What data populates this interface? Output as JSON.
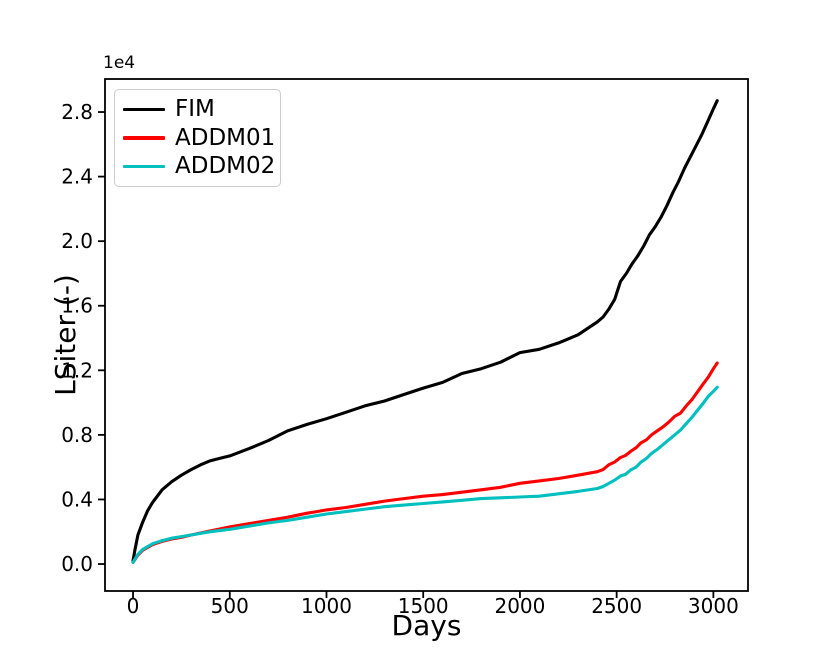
{
  "figure": {
    "background": "#ffffff",
    "text_color": "#000000"
  },
  "chart_data": {
    "type": "line",
    "title": "",
    "xlabel": "Days",
    "ylabel": "LSiter (-)",
    "y_offset_label": "1e4",
    "grid": false,
    "legend_position": "upper-left",
    "axis_color": "#000000",
    "x_range": [
      -145,
      3179
    ],
    "y_range": [
      -1671,
      30046
    ],
    "x_ticks": [
      0,
      500,
      1000,
      1500,
      2000,
      2500,
      3000
    ],
    "x_tick_labels": [
      "0",
      "500",
      "1000",
      "1500",
      "2000",
      "2500",
      "3000"
    ],
    "y_ticks": [
      0,
      4000,
      8000,
      12000,
      16000,
      20000,
      24000,
      28000
    ],
    "y_tick_labels": [
      "0.0",
      "0.4",
      "0.8",
      "1.2",
      "1.6",
      "2.0",
      "2.4",
      "2.8"
    ],
    "series": [
      {
        "name": "FIM",
        "color": "#000000",
        "points": [
          [
            0,
            200
          ],
          [
            10,
            900
          ],
          [
            25,
            1800
          ],
          [
            50,
            2600
          ],
          [
            75,
            3300
          ],
          [
            100,
            3800
          ],
          [
            150,
            4600
          ],
          [
            200,
            5100
          ],
          [
            250,
            5500
          ],
          [
            300,
            5850
          ],
          [
            350,
            6150
          ],
          [
            400,
            6400
          ],
          [
            450,
            6550
          ],
          [
            500,
            6700
          ],
          [
            600,
            7150
          ],
          [
            700,
            7650
          ],
          [
            800,
            8250
          ],
          [
            900,
            8650
          ],
          [
            1000,
            9000
          ],
          [
            1100,
            9400
          ],
          [
            1200,
            9800
          ],
          [
            1300,
            10100
          ],
          [
            1400,
            10500
          ],
          [
            1500,
            10900
          ],
          [
            1600,
            11250
          ],
          [
            1700,
            11800
          ],
          [
            1800,
            12100
          ],
          [
            1900,
            12500
          ],
          [
            2000,
            13100
          ],
          [
            2100,
            13300
          ],
          [
            2200,
            13700
          ],
          [
            2300,
            14200
          ],
          [
            2400,
            15000
          ],
          [
            2430,
            15300
          ],
          [
            2460,
            15800
          ],
          [
            2490,
            16400
          ],
          [
            2520,
            17500
          ],
          [
            2550,
            18000
          ],
          [
            2580,
            18600
          ],
          [
            2610,
            19100
          ],
          [
            2640,
            19700
          ],
          [
            2670,
            20400
          ],
          [
            2700,
            20900
          ],
          [
            2730,
            21500
          ],
          [
            2760,
            22200
          ],
          [
            2790,
            23000
          ],
          [
            2820,
            23700
          ],
          [
            2850,
            24500
          ],
          [
            2880,
            25200
          ],
          [
            2910,
            25900
          ],
          [
            2940,
            26600
          ],
          [
            2970,
            27400
          ],
          [
            3000,
            28200
          ],
          [
            3020,
            28700
          ]
        ]
      },
      {
        "name": "ADDM01",
        "color": "#ff0000",
        "points": [
          [
            0,
            100
          ],
          [
            25,
            550
          ],
          [
            50,
            850
          ],
          [
            100,
            1200
          ],
          [
            150,
            1400
          ],
          [
            200,
            1550
          ],
          [
            250,
            1650
          ],
          [
            300,
            1800
          ],
          [
            400,
            2050
          ],
          [
            500,
            2300
          ],
          [
            600,
            2500
          ],
          [
            700,
            2700
          ],
          [
            800,
            2900
          ],
          [
            900,
            3150
          ],
          [
            950,
            3250
          ],
          [
            1000,
            3350
          ],
          [
            1100,
            3500
          ],
          [
            1200,
            3700
          ],
          [
            1300,
            3900
          ],
          [
            1400,
            4050
          ],
          [
            1500,
            4200
          ],
          [
            1600,
            4300
          ],
          [
            1700,
            4450
          ],
          [
            1800,
            4600
          ],
          [
            1900,
            4750
          ],
          [
            2000,
            5000
          ],
          [
            2100,
            5150
          ],
          [
            2200,
            5300
          ],
          [
            2300,
            5500
          ],
          [
            2400,
            5720
          ],
          [
            2430,
            5850
          ],
          [
            2460,
            6150
          ],
          [
            2490,
            6320
          ],
          [
            2520,
            6600
          ],
          [
            2545,
            6720
          ],
          [
            2575,
            7000
          ],
          [
            2600,
            7200
          ],
          [
            2625,
            7500
          ],
          [
            2655,
            7700
          ],
          [
            2680,
            8000
          ],
          [
            2710,
            8250
          ],
          [
            2740,
            8500
          ],
          [
            2770,
            8800
          ],
          [
            2800,
            9150
          ],
          [
            2830,
            9350
          ],
          [
            2860,
            9800
          ],
          [
            2890,
            10200
          ],
          [
            2920,
            10700
          ],
          [
            2950,
            11200
          ],
          [
            2975,
            11600
          ],
          [
            3000,
            12100
          ],
          [
            3020,
            12450
          ]
        ]
      },
      {
        "name": "ADDM02",
        "color": "#00bfbf",
        "points": [
          [
            0,
            100
          ],
          [
            25,
            600
          ],
          [
            50,
            900
          ],
          [
            100,
            1250
          ],
          [
            150,
            1450
          ],
          [
            200,
            1600
          ],
          [
            250,
            1700
          ],
          [
            300,
            1800
          ],
          [
            400,
            2000
          ],
          [
            500,
            2150
          ],
          [
            600,
            2350
          ],
          [
            700,
            2550
          ],
          [
            800,
            2700
          ],
          [
            900,
            2900
          ],
          [
            1000,
            3100
          ],
          [
            1100,
            3250
          ],
          [
            1200,
            3400
          ],
          [
            1300,
            3550
          ],
          [
            1400,
            3650
          ],
          [
            1500,
            3750
          ],
          [
            1600,
            3850
          ],
          [
            1700,
            3950
          ],
          [
            1800,
            4050
          ],
          [
            1900,
            4100
          ],
          [
            2000,
            4150
          ],
          [
            2100,
            4200
          ],
          [
            2200,
            4350
          ],
          [
            2300,
            4500
          ],
          [
            2400,
            4680
          ],
          [
            2430,
            4800
          ],
          [
            2460,
            5000
          ],
          [
            2490,
            5200
          ],
          [
            2520,
            5450
          ],
          [
            2545,
            5550
          ],
          [
            2575,
            5850
          ],
          [
            2600,
            6000
          ],
          [
            2625,
            6300
          ],
          [
            2655,
            6550
          ],
          [
            2680,
            6850
          ],
          [
            2710,
            7100
          ],
          [
            2740,
            7400
          ],
          [
            2770,
            7700
          ],
          [
            2800,
            8000
          ],
          [
            2830,
            8300
          ],
          [
            2860,
            8700
          ],
          [
            2890,
            9100
          ],
          [
            2920,
            9550
          ],
          [
            2950,
            10000
          ],
          [
            2975,
            10400
          ],
          [
            3000,
            10700
          ],
          [
            3020,
            10950
          ]
        ]
      }
    ]
  }
}
